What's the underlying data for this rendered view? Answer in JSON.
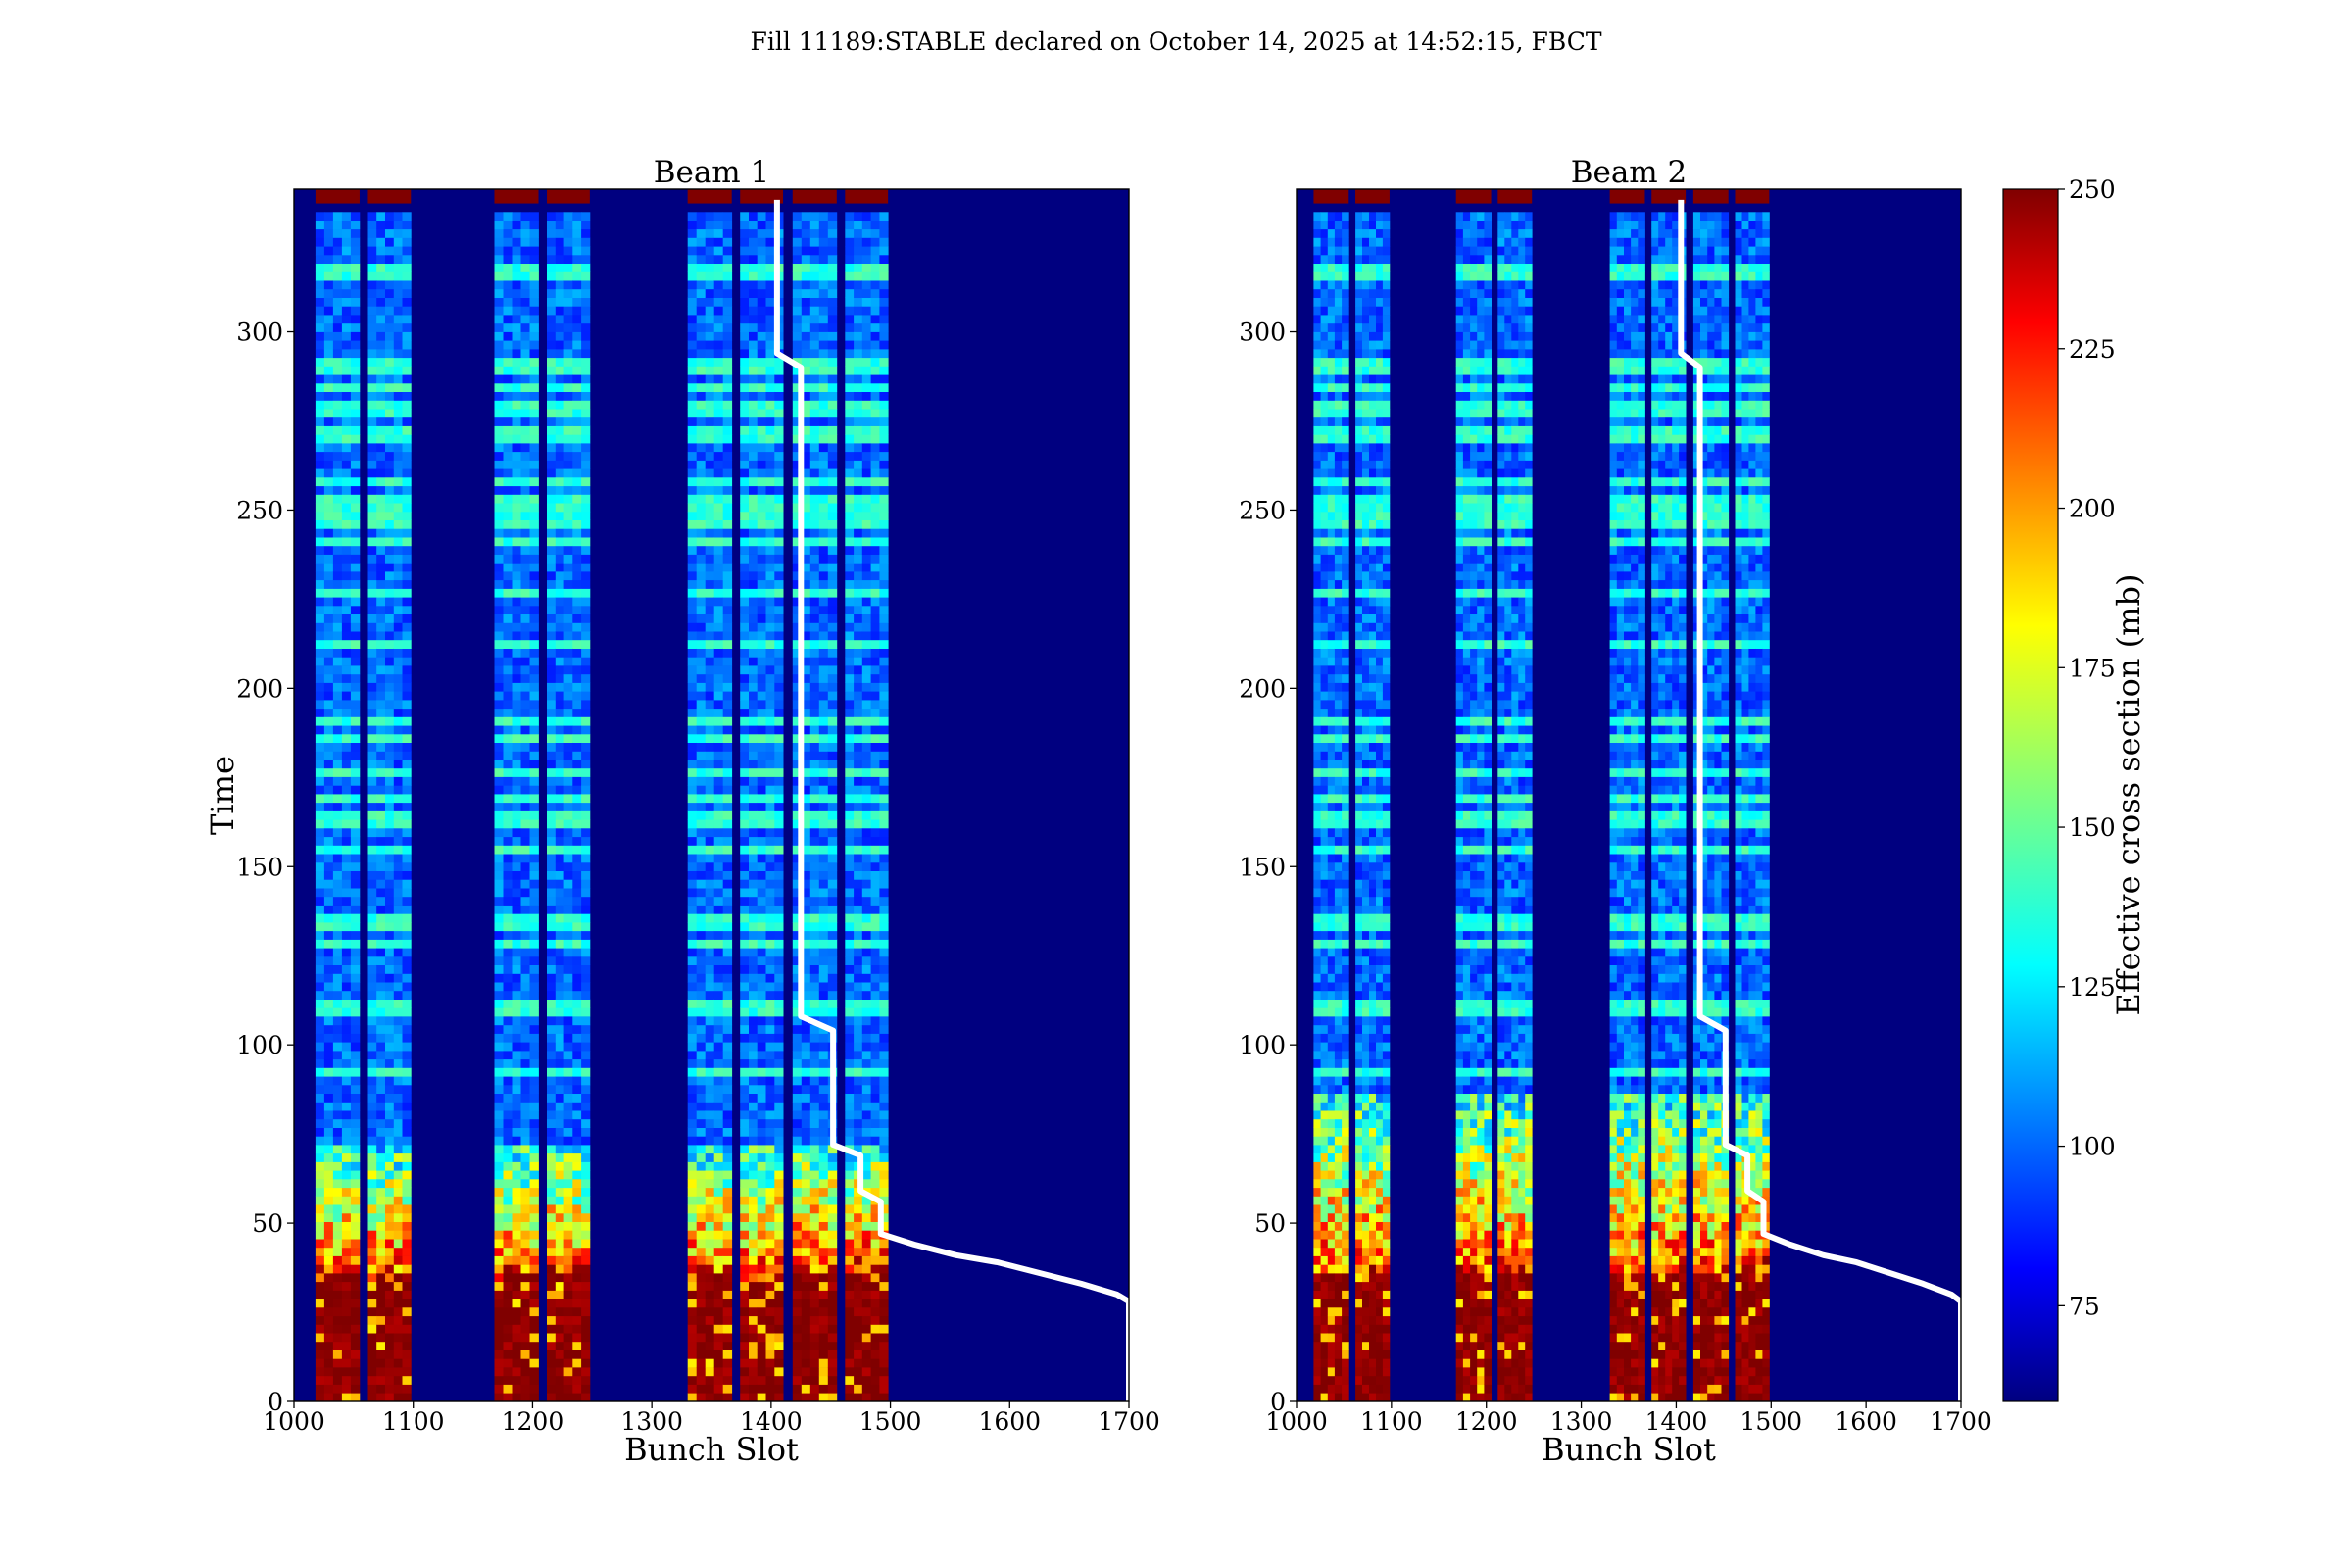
{
  "title": "Fill 11189:STABLE declared on October 14, 2025 at 14:52:15, FBCT",
  "chart_data": [
    {
      "type": "heatmap",
      "title": "Beam 1",
      "xlabel": "Bunch Slot",
      "ylabel": "Time",
      "xlim": [
        1000,
        1700
      ],
      "ylim": [
        0,
        340
      ],
      "xticks": [
        1000,
        1100,
        1200,
        1300,
        1400,
        1500,
        1600,
        1700
      ],
      "yticks": [
        0,
        50,
        100,
        150,
        200,
        250,
        300
      ],
      "trains": [
        [
          1018,
          1055
        ],
        [
          1062,
          1098
        ],
        [
          1168,
          1205
        ],
        [
          1212,
          1248
        ],
        [
          1330,
          1367
        ],
        [
          1374,
          1410
        ],
        [
          1418,
          1455
        ],
        [
          1462,
          1498
        ]
      ],
      "hot_height": [
        38,
        38,
        38,
        38,
        38,
        38,
        40,
        40
      ],
      "warm_height": [
        70,
        70,
        70,
        70,
        70,
        70,
        72,
        72
      ],
      "overlay_line": {
        "color": "#ffffff",
        "points": [
          [
            1405,
            337
          ],
          [
            1405,
            294
          ],
          [
            1425,
            290
          ],
          [
            1425,
            108
          ],
          [
            1452,
            104
          ],
          [
            1452,
            72
          ],
          [
            1475,
            69
          ],
          [
            1475,
            59
          ],
          [
            1492,
            56
          ],
          [
            1492,
            47
          ],
          [
            1520,
            44
          ],
          [
            1555,
            41
          ],
          [
            1590,
            39
          ],
          [
            1625,
            36
          ],
          [
            1660,
            33
          ],
          [
            1690,
            30
          ],
          [
            1700,
            28
          ],
          [
            1700,
            0
          ]
        ]
      }
    },
    {
      "type": "heatmap",
      "title": "Beam 2",
      "xlabel": "Bunch Slot",
      "ylabel": "",
      "xlim": [
        1000,
        1700
      ],
      "ylim": [
        0,
        340
      ],
      "xticks": [
        1000,
        1100,
        1200,
        1300,
        1400,
        1500,
        1600,
        1700
      ],
      "yticks": [
        0,
        50,
        100,
        150,
        200,
        250,
        300
      ],
      "trains": [
        [
          1018,
          1055
        ],
        [
          1062,
          1098
        ],
        [
          1168,
          1205
        ],
        [
          1212,
          1248
        ],
        [
          1330,
          1367
        ],
        [
          1374,
          1410
        ],
        [
          1418,
          1455
        ],
        [
          1462,
          1498
        ]
      ],
      "hot_height": [
        38,
        38,
        38,
        38,
        38,
        38,
        38,
        40
      ],
      "warm_height": [
        85,
        85,
        85,
        85,
        85,
        85,
        85,
        85
      ],
      "overlay_line": {
        "color": "#ffffff",
        "points": [
          [
            1405,
            337
          ],
          [
            1405,
            294
          ],
          [
            1425,
            290
          ],
          [
            1425,
            108
          ],
          [
            1452,
            104
          ],
          [
            1452,
            72
          ],
          [
            1475,
            69
          ],
          [
            1475,
            59
          ],
          [
            1492,
            56
          ],
          [
            1492,
            47
          ],
          [
            1520,
            44
          ],
          [
            1555,
            41
          ],
          [
            1590,
            39
          ],
          [
            1625,
            36
          ],
          [
            1660,
            33
          ],
          [
            1690,
            30
          ],
          [
            1700,
            28
          ],
          [
            1700,
            0
          ]
        ]
      }
    }
  ],
  "colorbar": {
    "label": "Effective cross section (mb)",
    "colormap": "jet",
    "range": [
      60,
      250
    ],
    "ticks": [
      75,
      100,
      125,
      150,
      175,
      200,
      225,
      250
    ]
  }
}
